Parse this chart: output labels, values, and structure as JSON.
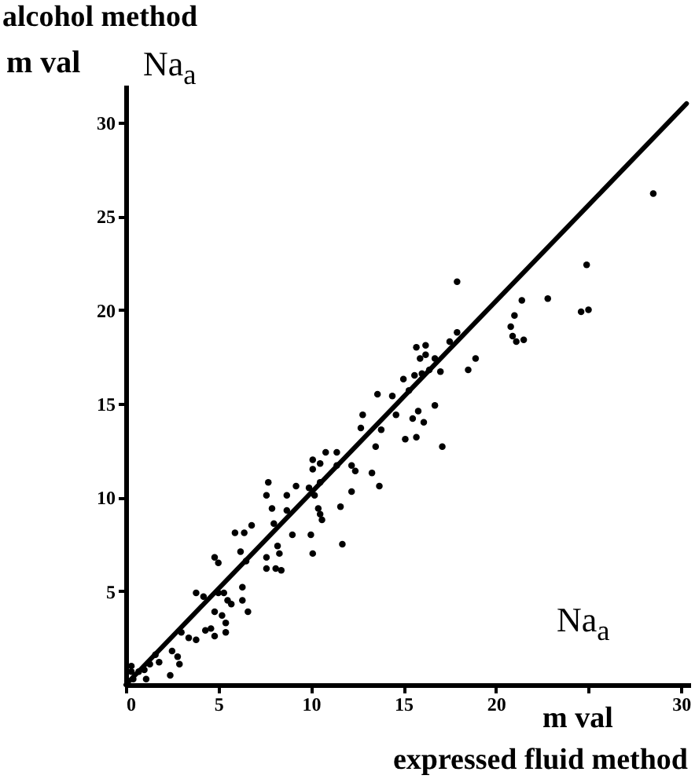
{
  "chart_data": {
    "type": "scatter",
    "xlabel": "expressed fluid method",
    "ylabel": "alcohol method",
    "annotations": [
      "m val",
      "Na$_{a}$",
      "Na$_{a}$",
      "m val"
    ],
    "xlim": [
      0,
      30.5
    ],
    "ylim": [
      0,
      32
    ],
    "xticks": [
      0,
      5,
      10,
      15,
      20,
      {
        "value": 25,
        "label": null
      },
      30
    ],
    "yticks": [
      5,
      10,
      15,
      20,
      25,
      30
    ],
    "grid": false,
    "series": [
      {
        "color": "#000000",
        "marker": "circle",
        "x": [
          28.5,
          24.9,
          24.6,
          25.0,
          22.8,
          21.4,
          21.0,
          20.8,
          20.9,
          21.1,
          21.5,
          17.9,
          18.9,
          18.5,
          15.7,
          16.2,
          15.9,
          16.2,
          16.7,
          17.5,
          17.9,
          15.0,
          15.6,
          16.0,
          16.4,
          17.0,
          14.4,
          15.3,
          13.6,
          16.7,
          14.6,
          15.8,
          15.5,
          16.1,
          13.8,
          15.1,
          15.7,
          17.1,
          13.7,
          12.8,
          12.7,
          13.5,
          10.8,
          11.4,
          10.1,
          10.5,
          11.4,
          10.1,
          12.2,
          12.4,
          10.5,
          12.2,
          13.3,
          7.7,
          7.6,
          8.7,
          9.2,
          9.9,
          10.2,
          7.9,
          8.7,
          10.4,
          11.6,
          5.9,
          6.4,
          6.8,
          8.0,
          9.0,
          10.0,
          10.1,
          11.7,
          10.5,
          10.6,
          8.2,
          8.3,
          7.6,
          7.6,
          8.1,
          8.4,
          6.2,
          6.5,
          4.8,
          5.0,
          3.8,
          4.2,
          5.0,
          5.3,
          5.5,
          5.7,
          6.3,
          6.3,
          6.6,
          4.8,
          5.2,
          5.4,
          4.6,
          4.3,
          4.8,
          5.4,
          3.4,
          3.8,
          3.0,
          2.5,
          2.8,
          2.9,
          2.4,
          1.6,
          1.8,
          1.3,
          1.0,
          0.7,
          0.3,
          0.3,
          1.1,
          0.4
        ],
        "values": [
          26.2,
          22.4,
          19.9,
          20.0,
          20.6,
          20.5,
          19.7,
          19.1,
          18.6,
          18.3,
          18.4,
          21.5,
          17.4,
          16.8,
          18.0,
          18.1,
          17.4,
          17.6,
          17.4,
          18.3,
          18.8,
          16.3,
          16.5,
          16.6,
          16.8,
          16.7,
          15.4,
          15.7,
          15.5,
          14.9,
          14.4,
          14.6,
          14.2,
          14.0,
          13.6,
          13.1,
          13.2,
          12.7,
          10.6,
          14.4,
          13.7,
          12.7,
          12.4,
          12.4,
          12.0,
          11.8,
          11.7,
          11.5,
          11.7,
          11.4,
          10.8,
          10.3,
          11.3,
          10.8,
          10.1,
          10.1,
          10.6,
          10.5,
          10.1,
          9.4,
          9.3,
          9.4,
          9.5,
          8.1,
          8.1,
          8.5,
          8.6,
          8.0,
          8.0,
          7.0,
          7.5,
          9.1,
          8.8,
          7.4,
          7.0,
          6.8,
          6.2,
          6.2,
          6.1,
          7.1,
          6.6,
          6.8,
          6.5,
          4.9,
          4.7,
          4.9,
          4.9,
          4.5,
          4.3,
          5.2,
          4.5,
          3.9,
          3.9,
          3.7,
          3.3,
          3.0,
          2.9,
          2.6,
          2.8,
          2.5,
          2.4,
          2.8,
          1.8,
          1.5,
          1.1,
          0.5,
          1.6,
          1.2,
          1.1,
          0.8,
          0.7,
          1.0,
          0.7,
          0.3,
          0.3
        ]
      },
      {
        "type": "line",
        "color": "#000000",
        "marker": "none",
        "x": [
          0,
          30.3
        ],
        "values": [
          0,
          31
        ]
      }
    ]
  }
}
